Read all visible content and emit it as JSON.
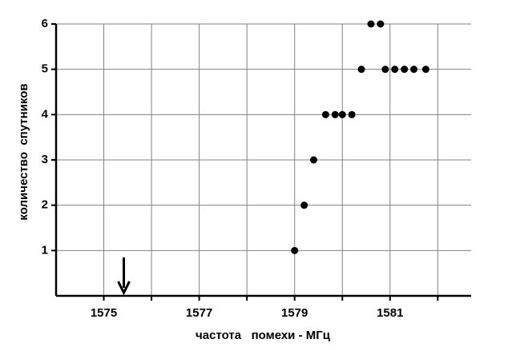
{
  "chart_data": {
    "type": "scatter",
    "x_label": "частота   помехи - МГц",
    "y_label": "количество  спутников",
    "x": [
      1579.0,
      1579.2,
      1579.4,
      1579.65,
      1579.85,
      1580.0,
      1580.2,
      1580.4,
      1580.6,
      1580.8,
      1580.9,
      1581.1,
      1581.3,
      1581.5,
      1581.75
    ],
    "values": [
      1,
      2,
      3,
      4,
      4,
      4,
      4,
      5,
      6,
      6,
      5,
      5,
      5,
      5,
      5
    ],
    "color": "#000000",
    "xlim": [
      1574,
      1582.7
    ],
    "ylim": [
      0,
      6
    ],
    "xticks": [
      1575,
      1577,
      1579,
      1581
    ],
    "minor_xticks": [
      1576,
      1578,
      1580,
      1582
    ],
    "yticks": [
      1,
      2,
      3,
      4,
      5,
      6
    ],
    "grid": true,
    "arrow_x": 1575.42
  }
}
